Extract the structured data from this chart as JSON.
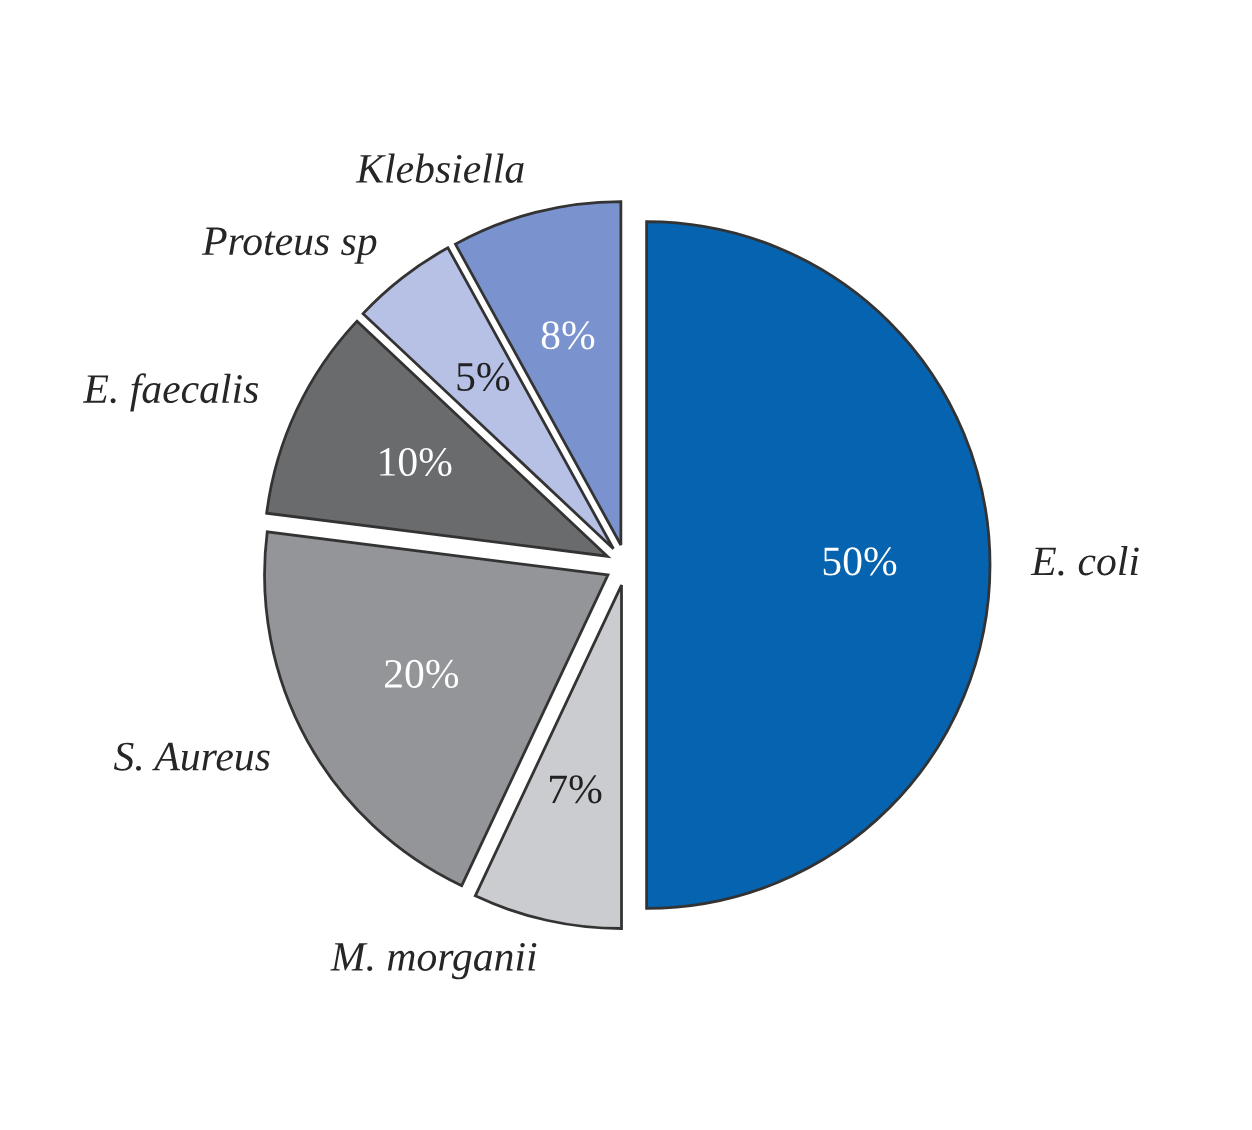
{
  "chart_data": {
    "type": "pie",
    "categories": [
      "E. coli",
      "M. morganii",
      "S. Aureus",
      "E. faecalis",
      "Proteus sp",
      "Klebsiella"
    ],
    "values": [
      50,
      7,
      20,
      10,
      5,
      8
    ],
    "value_labels": [
      "50%",
      "7%",
      "20%",
      "10%",
      "5%",
      "8%"
    ],
    "colors": [
      "#0563b0",
      "#cbcccf",
      "#939598",
      "#6a6b6d",
      "#b6c1e5",
      "#7a93cf"
    ],
    "legend": false
  }
}
